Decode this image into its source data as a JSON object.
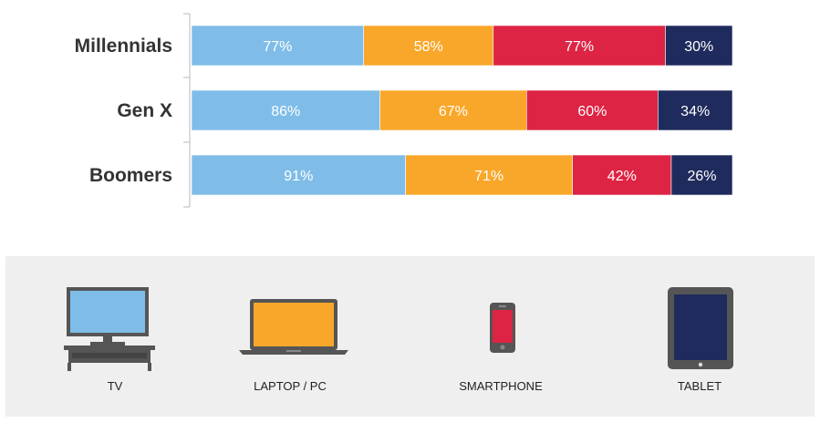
{
  "chart_data": {
    "type": "bar",
    "orientation": "horizontal",
    "stacked": true,
    "categories": [
      "Millennials",
      "Gen X",
      "Boomers"
    ],
    "series": [
      {
        "name": "TV",
        "color": "#7fbde8",
        "values": [
          77,
          86,
          91
        ]
      },
      {
        "name": "LAPTOP / PC",
        "color": "#f9a72a",
        "values": [
          58,
          67,
          71
        ]
      },
      {
        "name": "SMARTPHONE",
        "color": "#dd2444",
        "values": [
          77,
          60,
          42
        ]
      },
      {
        "name": "TABLET",
        "color": "#1f2b5c",
        "values": [
          30,
          34,
          26
        ]
      }
    ],
    "value_suffix": "%",
    "data_label_colors": [
      "#ffffff",
      "#ffffff",
      "#ffffff",
      "#ffffff"
    ],
    "grid": false,
    "legend": "bottom"
  },
  "legend": {
    "items": [
      {
        "label": "TV",
        "icon": "tv-icon"
      },
      {
        "label": "LAPTOP / PC",
        "icon": "laptop-icon"
      },
      {
        "label": "SMARTPHONE",
        "icon": "smartphone-icon"
      },
      {
        "label": "TABLET",
        "icon": "tablet-icon"
      }
    ]
  }
}
